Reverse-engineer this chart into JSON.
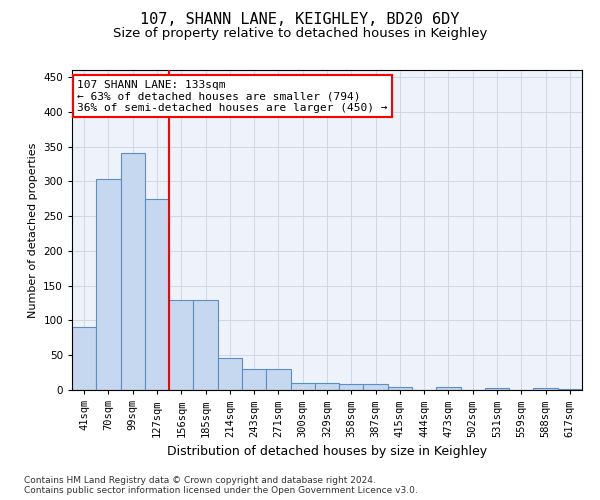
{
  "title1": "107, SHANN LANE, KEIGHLEY, BD20 6DY",
  "title2": "Size of property relative to detached houses in Keighley",
  "xlabel": "Distribution of detached houses by size in Keighley",
  "ylabel": "Number of detached properties",
  "categories": [
    "41sqm",
    "70sqm",
    "99sqm",
    "127sqm",
    "156sqm",
    "185sqm",
    "214sqm",
    "243sqm",
    "271sqm",
    "300sqm",
    "329sqm",
    "358sqm",
    "387sqm",
    "415sqm",
    "444sqm",
    "473sqm",
    "502sqm",
    "531sqm",
    "559sqm",
    "588sqm",
    "617sqm"
  ],
  "values": [
    90,
    303,
    340,
    275,
    130,
    130,
    46,
    30,
    30,
    10,
    10,
    8,
    8,
    4,
    0,
    4,
    0,
    3,
    0,
    3,
    2
  ],
  "bar_color": "#c5d8f0",
  "bar_edge_color": "#5a8fc3",
  "bar_linewidth": 0.8,
  "red_line_x": 3.5,
  "red_line_color": "red",
  "annotation_text": "107 SHANN LANE: 133sqm\n← 63% of detached houses are smaller (794)\n36% of semi-detached houses are larger (450) →",
  "annotation_box_color": "white",
  "annotation_box_edge": "red",
  "ylim": [
    0,
    460
  ],
  "yticks": [
    0,
    50,
    100,
    150,
    200,
    250,
    300,
    350,
    400,
    450
  ],
  "grid_color": "#d0d8e8",
  "background_color": "#eef2fa",
  "footer_text": "Contains HM Land Registry data © Crown copyright and database right 2024.\nContains public sector information licensed under the Open Government Licence v3.0.",
  "title1_fontsize": 11,
  "title2_fontsize": 9.5,
  "ylabel_fontsize": 8,
  "xlabel_fontsize": 9,
  "tick_fontsize": 7.5,
  "annotation_fontsize": 8,
  "footer_fontsize": 6.5
}
